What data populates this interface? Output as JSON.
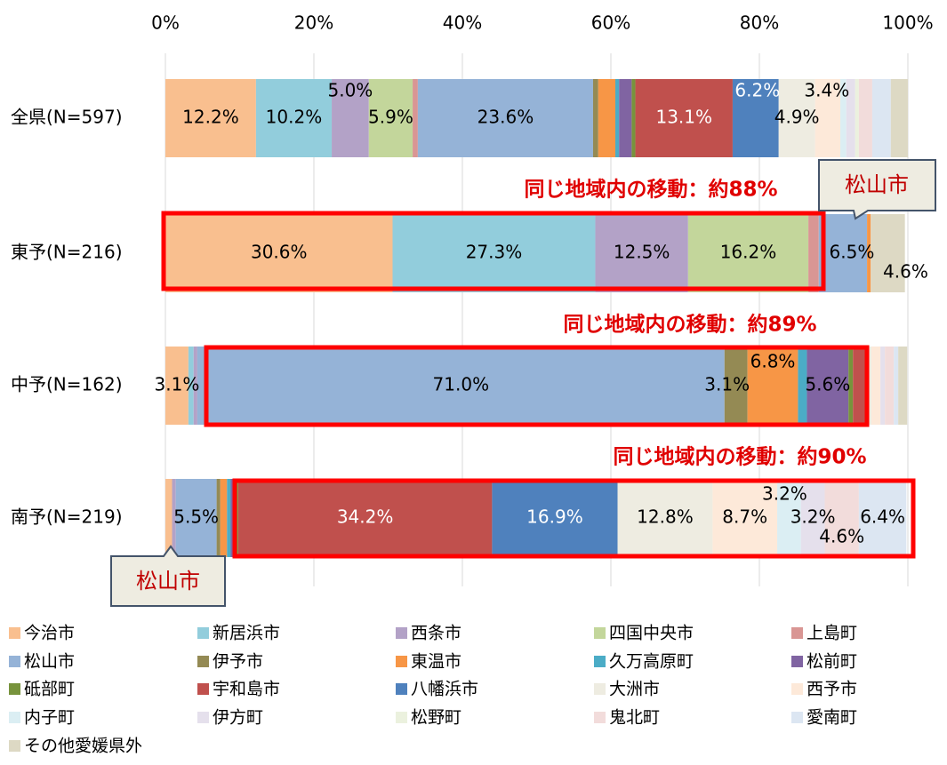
{
  "chart_data": {
    "type": "stacked_barh",
    "categories": [
      "全県(N=597)",
      "東予(N=216)",
      "中予(N=162)",
      "南予(N=219)"
    ],
    "xlim": [
      0,
      100
    ],
    "xticks": [
      {
        "value": 0,
        "label": "0%"
      },
      {
        "value": 20,
        "label": "20%"
      },
      {
        "value": 40,
        "label": "40%"
      },
      {
        "value": 60,
        "label": "60%"
      },
      {
        "value": 80,
        "label": "80%"
      },
      {
        "value": 100,
        "label": "100%"
      }
    ],
    "grid": true,
    "legend": "bottom",
    "series": [
      {
        "name": "今治市",
        "color": "#f9bf8f",
        "values": [
          12.2,
          30.6,
          3.1,
          0.9
        ],
        "value_labels": [
          "12.2%",
          "30.6%",
          "3.1%",
          null
        ]
      },
      {
        "name": "新居浜市",
        "color": "#92cddc",
        "values": [
          10.2,
          27.3,
          0.7,
          0
        ],
        "value_labels": [
          "10.2%",
          "27.3%",
          null,
          null
        ]
      },
      {
        "name": "西条市",
        "color": "#b3a2c7",
        "values": [
          5.0,
          12.5,
          0.5,
          0.5
        ],
        "value_labels": [
          "5.0%",
          "12.5%",
          null,
          null
        ]
      },
      {
        "name": "四国中央市",
        "color": "#c3d69b",
        "values": [
          5.9,
          16.2,
          0,
          0
        ],
        "value_labels": [
          "5.9%",
          "16.2%",
          null,
          null
        ]
      },
      {
        "name": "上島町",
        "color": "#d99694",
        "values": [
          0.7,
          1.4,
          0,
          0
        ],
        "value_labels": [
          null,
          null,
          null,
          null
        ]
      },
      {
        "name": "松山市",
        "color": "#95b3d7",
        "values": [
          23.6,
          6.5,
          71.0,
          5.5
        ],
        "value_labels": [
          "23.6%",
          "6.5%",
          "71.0%",
          "5.5%"
        ]
      },
      {
        "name": "伊予市",
        "color": "#948a54",
        "values": [
          0.7,
          0,
          3.1,
          0.5
        ],
        "value_labels": [
          null,
          null,
          "3.1%",
          null
        ]
      },
      {
        "name": "東温市",
        "color": "#f79646",
        "values": [
          2.3,
          0.5,
          6.8,
          0.9
        ],
        "value_labels": [
          null,
          null,
          "6.8%",
          null
        ]
      },
      {
        "name": "久万高原町",
        "color": "#4bacc6",
        "values": [
          0.5,
          0,
          1.2,
          0.5
        ],
        "value_labels": [
          null,
          null,
          null,
          null
        ]
      },
      {
        "name": "松前町",
        "color": "#8064a2",
        "values": [
          1.7,
          0,
          5.6,
          0.5
        ],
        "value_labels": [
          null,
          null,
          "5.6%",
          null
        ]
      },
      {
        "name": "砥部町",
        "color": "#77933c",
        "values": [
          0.5,
          0,
          0.6,
          0.5
        ],
        "value_labels": [
          null,
          null,
          null,
          null
        ]
      },
      {
        "name": "宇和島市",
        "color": "#c0504d",
        "values": [
          13.1,
          0,
          1.9,
          34.2
        ],
        "value_labels": [
          "13.1%",
          null,
          null,
          "34.2%"
        ]
      },
      {
        "name": "八幡浜市",
        "color": "#4f81bd",
        "values": [
          6.2,
          0,
          0,
          16.9
        ],
        "value_labels": [
          "6.2%",
          null,
          null,
          "16.9%"
        ]
      },
      {
        "name": "大洲市",
        "color": "#eeece1",
        "values": [
          4.9,
          0,
          0.6,
          12.8
        ],
        "value_labels": [
          "4.9%",
          null,
          null,
          "12.8%"
        ]
      },
      {
        "name": "西予市",
        "color": "#fde9d9",
        "values": [
          3.4,
          0,
          1.2,
          8.7
        ],
        "value_labels": [
          "3.4%",
          null,
          null,
          "8.7%"
        ]
      },
      {
        "name": "内子町",
        "color": "#dbeef3",
        "values": [
          0.8,
          0,
          0,
          3.2
        ],
        "value_labels": [
          null,
          null,
          null,
          "3.2%"
        ]
      },
      {
        "name": "伊方町",
        "color": "#e5e0ec",
        "values": [
          1.2,
          0,
          0.6,
          3.2
        ],
        "value_labels": [
          null,
          null,
          null,
          "3.2%"
        ]
      },
      {
        "name": "松野町",
        "color": "#ebf1de",
        "values": [
          0.5,
          0,
          0,
          0
        ],
        "value_labels": [
          null,
          null,
          null,
          null
        ]
      },
      {
        "name": "鬼北町",
        "color": "#f2dcdb",
        "values": [
          1.8,
          0,
          1.2,
          4.6
        ],
        "value_labels": [
          null,
          null,
          null,
          "4.6%"
        ]
      },
      {
        "name": "愛南町",
        "color": "#dce6f2",
        "values": [
          2.5,
          0,
          0.6,
          6.4
        ],
        "value_labels": [
          null,
          null,
          null,
          "6.4%"
        ]
      },
      {
        "name": "その他愛媛県外",
        "color": "#ddd9c4",
        "values": [
          2.3,
          4.6,
          1.2,
          0
        ],
        "value_labels": [
          null,
          "4.6%",
          null,
          null
        ]
      }
    ],
    "annotations": [
      "同じ地域内の移動：約88%",
      "同じ地域内の移動：約89%",
      "同じ地域内の移動：約90%",
      "松山市",
      "松山市"
    ]
  }
}
